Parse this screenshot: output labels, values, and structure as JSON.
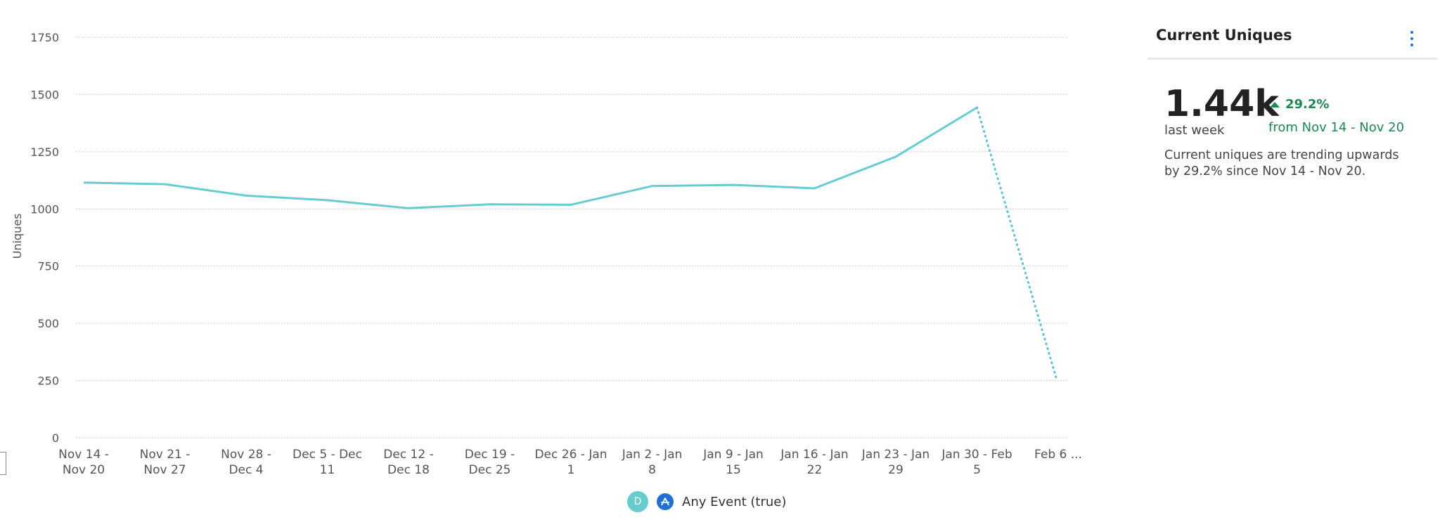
{
  "chart_data": {
    "type": "line",
    "ylabel": "Uniques",
    "ylim": [
      0,
      1750
    ],
    "y_ticks": [
      "0",
      "250",
      "500",
      "750",
      "1000",
      "1250",
      "1500",
      "1750"
    ],
    "categories": [
      [
        "Nov 14 -",
        "Nov 20"
      ],
      [
        "Nov 21 -",
        "Nov 27"
      ],
      [
        "Nov 28 -",
        "Dec 4"
      ],
      [
        "Dec 5 - Dec",
        "11"
      ],
      [
        "Dec 12 -",
        "Dec 18"
      ],
      [
        "Dec 19 -",
        "Dec 25"
      ],
      [
        "Dec 26 - Jan",
        "1"
      ],
      [
        "Jan 2 - Jan",
        "8"
      ],
      [
        "Jan 9 - Jan",
        "15"
      ],
      [
        "Jan 16 - Jan",
        "22"
      ],
      [
        "Jan 23 - Jan",
        "29"
      ],
      [
        "Jan 30 - Feb",
        "5"
      ],
      [
        "Feb 6 ..."
      ]
    ],
    "series": [
      {
        "name": "Any Event (true)",
        "values": [
          1115,
          1108,
          1058,
          1038,
          1003,
          1020,
          1018,
          1100,
          1105,
          1090,
          1228,
          1443,
          263
        ],
        "incomplete_last_point": true
      }
    ],
    "grid": true
  },
  "legend": {
    "badge": "D",
    "label": "Any Event (true)"
  },
  "colors": {
    "line": "#67CCCF",
    "positive": "#1b8a52",
    "accent": "#1f6fd6"
  },
  "panel": {
    "title": "Current Uniques",
    "value": "1.44k",
    "value_sub": "last week",
    "change": "29.2%",
    "change_sub": "from Nov 14 - Nov 20",
    "description": "Current uniques are trending upwards by 29.2% since Nov 14 - Nov 20."
  }
}
